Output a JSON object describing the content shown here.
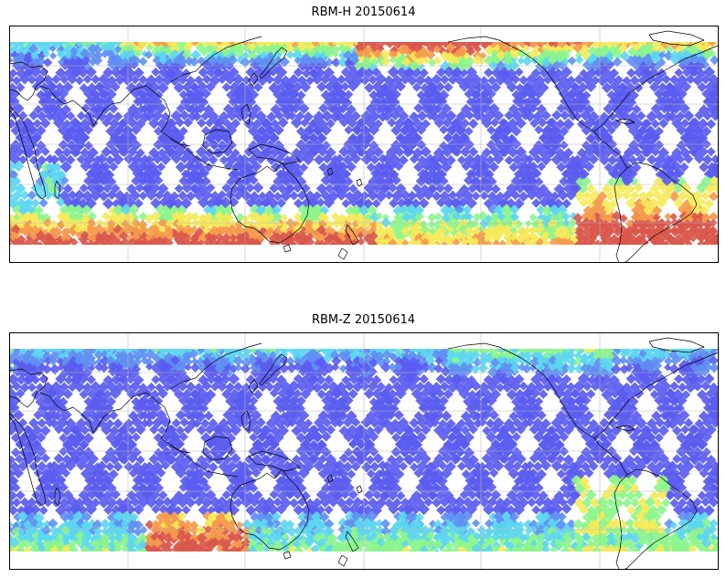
{
  "panels": [
    {
      "title": "RBM-H 20150614",
      "variable": "RBM-H",
      "date": "20150614",
      "colormap": "jet",
      "projection": "plate-carree-pacific-centered",
      "gridlines": true,
      "coastlines": true,
      "high_value_regions": [
        "south-band-west",
        "south-band-central",
        "south-atlantic",
        "north-band-west",
        "north-band-east"
      ]
    },
    {
      "title": "RBM-Z 20150614",
      "variable": "RBM-Z",
      "date": "20150614",
      "colormap": "jet",
      "projection": "plate-carree-pacific-centered",
      "gridlines": true,
      "coastlines": true,
      "high_value_regions": [
        "south-band-central",
        "south-atlantic"
      ]
    }
  ],
  "colors": {
    "low": "#5a5cf0",
    "low_mid": "#5f8ff2",
    "mid": "#5cd6f0",
    "mid_high": "#8cf58c",
    "high": "#f5ea5a",
    "higher": "#f59a4a",
    "max": "#d9564a",
    "coastline": "#000000",
    "grid": "#b8b8b8",
    "frame": "#000000"
  }
}
